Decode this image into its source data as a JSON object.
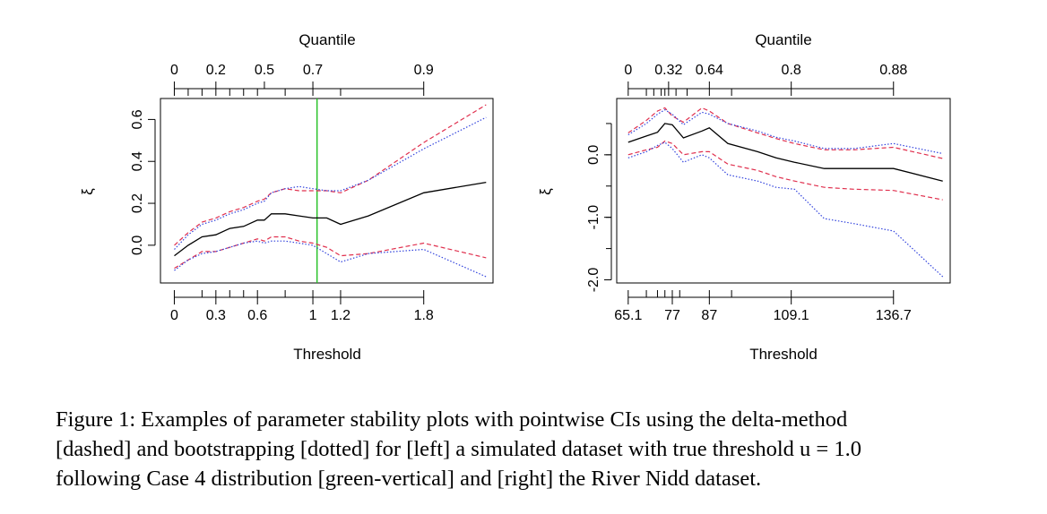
{
  "chart_data": [
    {
      "type": "line",
      "xlabel": "Threshold",
      "ylabel": "ξ",
      "top_axis_label": "Quantile",
      "xlim": [
        -0.1,
        2.3
      ],
      "ylim": [
        -0.18,
        0.7
      ],
      "x_ticks": [
        0,
        0.3,
        0.6,
        1,
        1.2,
        1.8
      ],
      "x_tick_labels": [
        "0",
        "0.3",
        "0.6",
        "1",
        "1.2",
        "1.8"
      ],
      "x_minor_ticks": [
        0,
        0.2,
        0.3,
        0.4,
        0.5,
        0.6,
        0.8,
        1.0,
        1.2,
        1.8
      ],
      "y_ticks": [
        0.0,
        0.2,
        0.4,
        0.6
      ],
      "y_tick_labels": [
        "0.0",
        "0.2",
        "0.4",
        "0.6"
      ],
      "top_ticks": [
        0,
        0.1,
        0.2,
        0.3,
        0.4,
        0.5,
        0.6,
        0.8,
        1.0,
        1.2,
        1.8
      ],
      "top_tick_labels": [
        {
          "x": 0,
          "label": "0"
        },
        {
          "x": 0.3,
          "label": "0.2"
        },
        {
          "x": 0.65,
          "label": "0.5"
        },
        {
          "x": 1.0,
          "label": "0.7"
        },
        {
          "x": 1.8,
          "label": "0.9"
        }
      ],
      "vline": {
        "x": 1.03,
        "color": "#22c022"
      },
      "series": [
        {
          "style": "solid",
          "color": "#000000",
          "x": [
            0,
            0.1,
            0.2,
            0.3,
            0.4,
            0.5,
            0.6,
            0.65,
            0.7,
            0.8,
            0.9,
            1.0,
            1.1,
            1.2,
            1.4,
            1.8,
            2.25
          ],
          "y": [
            -0.05,
            0.0,
            0.04,
            0.05,
            0.08,
            0.09,
            0.12,
            0.12,
            0.15,
            0.15,
            0.14,
            0.13,
            0.13,
            0.1,
            0.14,
            0.25,
            0.3
          ]
        },
        {
          "style": "dashed",
          "color": "#e0304e",
          "x": [
            0,
            0.1,
            0.2,
            0.3,
            0.4,
            0.5,
            0.6,
            0.65,
            0.7,
            0.8,
            0.9,
            1.0,
            1.1,
            1.2,
            1.4,
            1.8,
            2.25
          ],
          "y": [
            0.0,
            0.06,
            0.11,
            0.13,
            0.16,
            0.18,
            0.21,
            0.22,
            0.25,
            0.27,
            0.26,
            0.26,
            0.26,
            0.25,
            0.31,
            0.49,
            0.67
          ]
        },
        {
          "style": "dashed",
          "color": "#e0304e",
          "x": [
            0,
            0.1,
            0.2,
            0.3,
            0.4,
            0.5,
            0.6,
            0.65,
            0.7,
            0.8,
            0.9,
            1.0,
            1.1,
            1.2,
            1.4,
            1.8,
            2.25
          ],
          "y": [
            -0.11,
            -0.07,
            -0.03,
            -0.03,
            -0.01,
            0.01,
            0.03,
            0.02,
            0.04,
            0.04,
            0.02,
            0.01,
            -0.01,
            -0.05,
            -0.04,
            0.01,
            -0.06
          ]
        },
        {
          "style": "dotted",
          "color": "#3344dd",
          "x": [
            0,
            0.1,
            0.2,
            0.3,
            0.4,
            0.5,
            0.6,
            0.65,
            0.7,
            0.8,
            0.9,
            1.0,
            1.1,
            1.2,
            1.4,
            1.8,
            2.25
          ],
          "y": [
            -0.02,
            0.05,
            0.1,
            0.12,
            0.15,
            0.17,
            0.2,
            0.21,
            0.25,
            0.27,
            0.28,
            0.27,
            0.26,
            0.26,
            0.31,
            0.46,
            0.61
          ]
        },
        {
          "style": "dotted",
          "color": "#3344dd",
          "x": [
            0,
            0.1,
            0.2,
            0.3,
            0.4,
            0.5,
            0.6,
            0.65,
            0.7,
            0.8,
            0.9,
            1.0,
            1.1,
            1.2,
            1.4,
            1.8,
            2.25
          ],
          "y": [
            -0.12,
            -0.07,
            -0.04,
            -0.03,
            -0.01,
            0.01,
            0.02,
            0.01,
            0.02,
            0.02,
            0.01,
            0.0,
            -0.04,
            -0.08,
            -0.04,
            -0.02,
            -0.15
          ]
        }
      ]
    },
    {
      "type": "line",
      "xlabel": "Threshold",
      "ylabel": "ξ",
      "top_axis_label": "Quantile",
      "xlim": [
        62,
        152
      ],
      "ylim": [
        -2.05,
        0.9
      ],
      "x_ticks": [
        65.1,
        77,
        87,
        109.1,
        136.7
      ],
      "x_tick_labels": [
        "65.1",
        "77",
        "87",
        "109.1",
        "136.7"
      ],
      "x_minor_ticks": [
        65.1,
        70,
        73,
        75,
        77,
        79,
        87,
        93,
        109.1,
        136.7
      ],
      "y_ticks": [
        -2.0,
        -1.0,
        0.0
      ],
      "y_tick_labels": [
        "-2.0",
        "-1.0",
        "0.0"
      ],
      "y_minor_ticks": [
        -2.0,
        -1.5,
        -1.0,
        -0.5,
        0.0,
        0.5
      ],
      "top_ticks": [
        65.1,
        70,
        72,
        74,
        75,
        76,
        78,
        81,
        87,
        93,
        109.1,
        136.7
      ],
      "top_tick_labels": [
        {
          "x": 65.1,
          "label": "0"
        },
        {
          "x": 76,
          "label": "0.32"
        },
        {
          "x": 87,
          "label": "0.64"
        },
        {
          "x": 109.1,
          "label": "0.8"
        },
        {
          "x": 136.7,
          "label": "0.88"
        }
      ],
      "series": [
        {
          "style": "solid",
          "color": "#000000",
          "x": [
            65.1,
            70,
            73,
            75,
            77,
            80,
            85,
            87,
            92,
            100,
            105,
            110,
            118,
            126,
            136.7,
            150
          ],
          "y": [
            0.2,
            0.3,
            0.36,
            0.5,
            0.48,
            0.27,
            0.38,
            0.43,
            0.18,
            0.05,
            -0.05,
            -0.12,
            -0.22,
            -0.22,
            -0.22,
            -0.42
          ]
        },
        {
          "style": "dashed",
          "color": "#e0304e",
          "x": [
            65.1,
            70,
            73,
            75,
            77,
            80,
            85,
            87,
            92,
            100,
            105,
            110,
            118,
            126,
            136.7,
            150
          ],
          "y": [
            0.35,
            0.55,
            0.7,
            0.75,
            0.62,
            0.52,
            0.75,
            0.7,
            0.5,
            0.35,
            0.26,
            0.18,
            0.08,
            0.08,
            0.12,
            -0.06
          ]
        },
        {
          "style": "dashed",
          "color": "#e0304e",
          "x": [
            65.1,
            70,
            73,
            75,
            77,
            80,
            85,
            87,
            92,
            100,
            105,
            110,
            118,
            126,
            136.7,
            150
          ],
          "y": [
            0.0,
            0.08,
            0.12,
            0.22,
            0.18,
            0.0,
            0.05,
            0.05,
            -0.15,
            -0.25,
            -0.35,
            -0.42,
            -0.52,
            -0.55,
            -0.57,
            -0.72
          ]
        },
        {
          "style": "dotted",
          "color": "#3344dd",
          "x": [
            65.1,
            70,
            73,
            75,
            77,
            80,
            85,
            87,
            92,
            100,
            105,
            110,
            118,
            126,
            136.7,
            150
          ],
          "y": [
            0.32,
            0.5,
            0.65,
            0.72,
            0.65,
            0.48,
            0.68,
            0.65,
            0.5,
            0.38,
            0.28,
            0.22,
            0.1,
            0.1,
            0.18,
            0.02
          ]
        },
        {
          "style": "dotted",
          "color": "#3344dd",
          "x": [
            65.1,
            70,
            73,
            75,
            77,
            80,
            85,
            87,
            92,
            100,
            105,
            110,
            118,
            126,
            136.7,
            150
          ],
          "y": [
            -0.05,
            0.05,
            0.15,
            0.2,
            0.1,
            -0.12,
            0.0,
            -0.05,
            -0.32,
            -0.42,
            -0.52,
            -0.55,
            -1.02,
            -1.1,
            -1.22,
            -1.95
          ]
        }
      ]
    }
  ],
  "caption": {
    "line1": "Figure 1: Examples of parameter stability plots with pointwise CIs using the delta-method",
    "line2": "[dashed] and bootstrapping [dotted] for [left] a simulated dataset with true threshold u = 1.0",
    "line3": "following Case 4 distribution [green-vertical] and [right] the River Nidd dataset."
  }
}
